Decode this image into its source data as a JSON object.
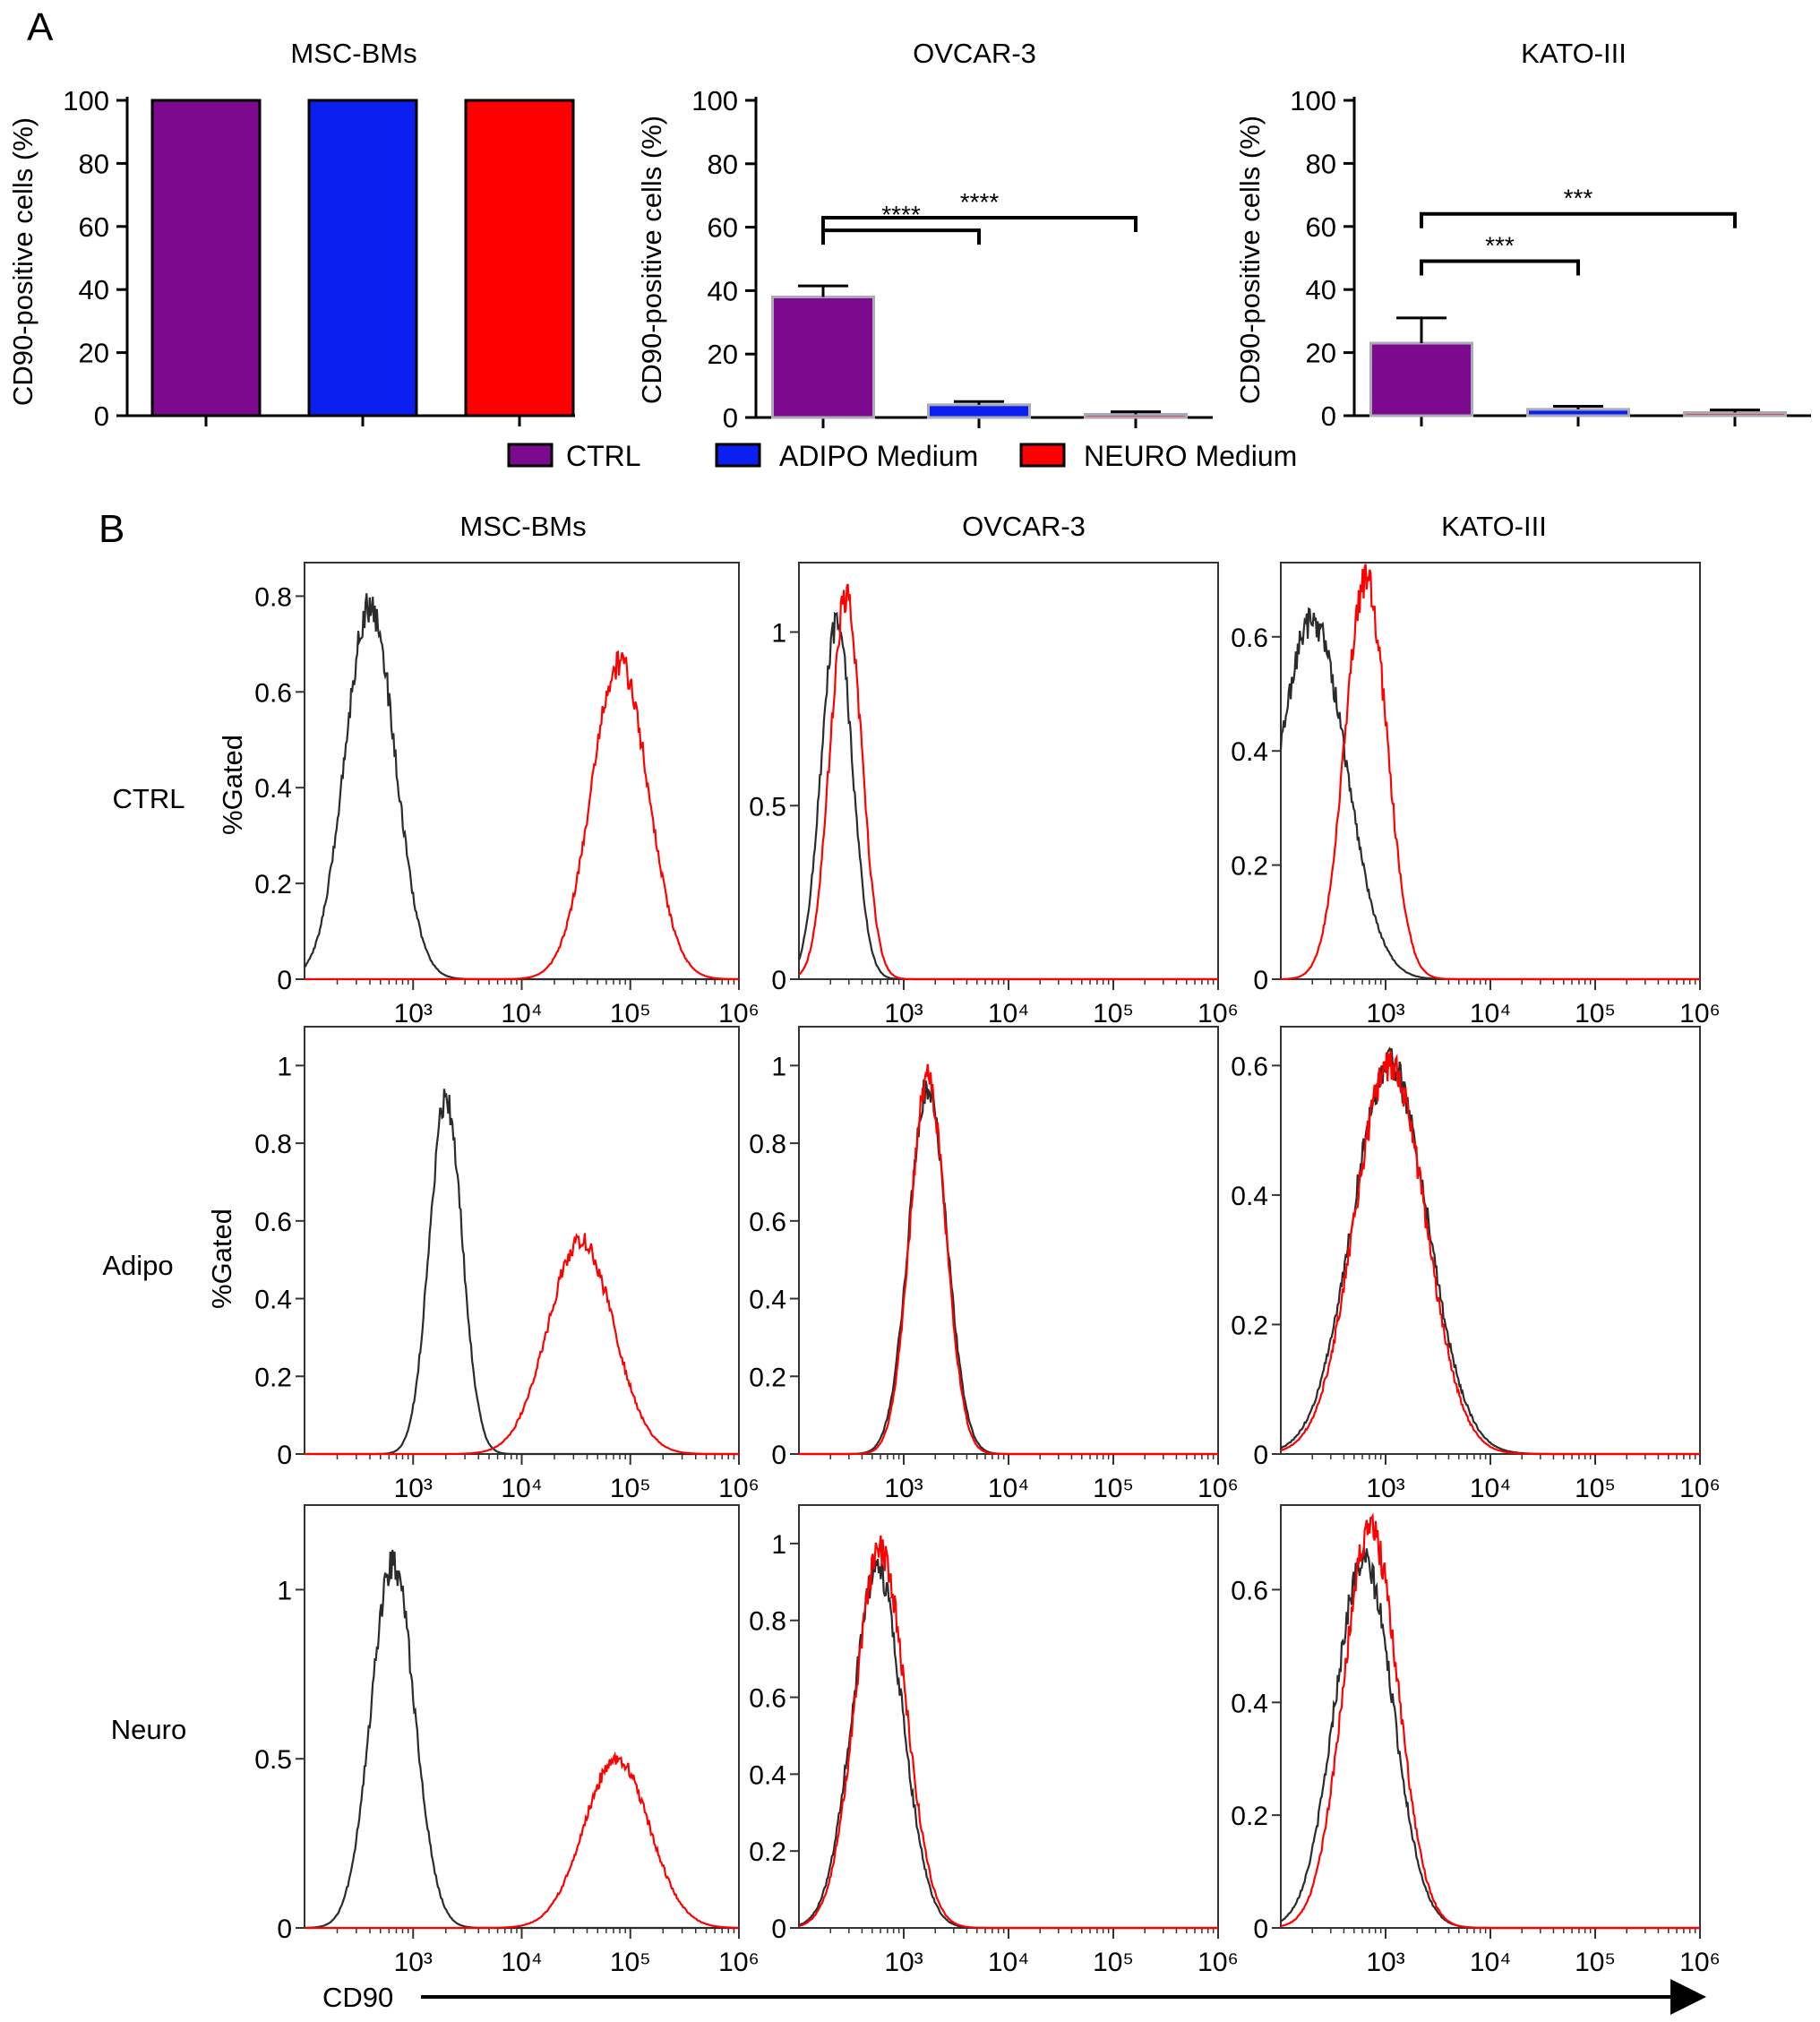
{
  "panels": {
    "a_letter": "A",
    "b_letter": "B"
  },
  "colors": {
    "ctrl": "#7B0A8E",
    "adipo": "#0A1EF0",
    "neuro": "#FF0000",
    "ctrl_histogram": "#2B2B2B",
    "treated_histogram": "#FF0000"
  },
  "legend": {
    "items": [
      {
        "label": "CTRL",
        "color": "#7B0A8E"
      },
      {
        "label": "ADIPO Medium",
        "color": "#0A1EF0"
      },
      {
        "label": "NEURO Medium",
        "color": "#FF0000"
      }
    ]
  },
  "panel_b": {
    "column_titles": [
      "MSC-BMs",
      "OVCAR-3",
      "KATO-III"
    ],
    "row_labels": [
      "CTRL",
      "Adipo",
      "Neuro"
    ],
    "y_axis_label": "%Gated",
    "x_axis_label": "CD90"
  },
  "chart_data": [
    {
      "type": "bar",
      "title": "MSC-BMs",
      "ylabel": "CD90-positive cells (%)",
      "xlabel": "",
      "ylim": [
        0,
        100
      ],
      "yticks": [
        0,
        20,
        40,
        60,
        80,
        100
      ],
      "categories": [
        "CTRL",
        "ADIPO Medium",
        "NEURO Medium"
      ],
      "values": [
        100,
        100,
        100
      ],
      "errors": [
        0,
        0,
        0
      ],
      "significance": []
    },
    {
      "type": "bar",
      "title": "OVCAR-3",
      "ylabel": "CD90-positive cells (%)",
      "xlabel": "",
      "ylim": [
        0,
        100
      ],
      "yticks": [
        0,
        20,
        40,
        60,
        80,
        100
      ],
      "categories": [
        "CTRL",
        "ADIPO Medium",
        "NEURO Medium"
      ],
      "values": [
        38,
        4,
        1
      ],
      "errors": [
        3.5,
        1,
        0.8
      ],
      "significance": [
        {
          "from": 0,
          "to": 1,
          "level": 59,
          "label": "****"
        },
        {
          "from": 0,
          "to": 2,
          "level": 63,
          "label": "****"
        }
      ]
    },
    {
      "type": "bar",
      "title": "KATO-III",
      "ylabel": "CD90-positive cells (%)",
      "xlabel": "",
      "ylim": [
        0,
        100
      ],
      "yticks": [
        0,
        20,
        40,
        60,
        80,
        100
      ],
      "categories": [
        "CTRL",
        "ADIPO Medium",
        "NEURO Medium"
      ],
      "values": [
        23,
        2,
        1
      ],
      "errors": [
        8,
        1,
        0.8
      ],
      "significance": [
        {
          "from": 0,
          "to": 1,
          "level": 49,
          "label": "***"
        },
        {
          "from": 0,
          "to": 2,
          "level": 64,
          "label": "***"
        }
      ]
    },
    {
      "type": "line",
      "title": "MSC-BMs",
      "row": "CTRL",
      "ylabel": "%Gated",
      "xlabel": "",
      "x_scale": "log",
      "xlim": [
        100,
        1000000
      ],
      "xticks": [
        1000,
        10000,
        100000,
        1000000
      ],
      "xtick_labels": [
        "10³",
        "10⁴",
        "10⁵",
        "10⁶"
      ],
      "ylim": [
        0,
        0.87
      ],
      "yticks": [
        0,
        0.2,
        0.4,
        0.6,
        0.8
      ],
      "ytick_labels": [
        "0",
        "0.2",
        "0.4",
        "0.6",
        "0.8"
      ],
      "series": [
        {
          "color": "#2B2B2B",
          "peak_x": 400,
          "peak_y": 0.78,
          "spread": 0.23
        },
        {
          "color": "#FF0000",
          "peak_x": 80000,
          "peak_y": 0.66,
          "spread": 0.26
        }
      ]
    },
    {
      "type": "line",
      "title": "OVCAR-3",
      "row": "CTRL",
      "ylabel": "",
      "xlabel": "",
      "x_scale": "log",
      "xlim": [
        100,
        1000000
      ],
      "xticks": [
        1000,
        10000,
        100000,
        1000000
      ],
      "xtick_labels": [
        "10³",
        "10⁴",
        "10⁵",
        "10⁶"
      ],
      "ylim": [
        0,
        1.2
      ],
      "yticks": [
        0,
        0.5,
        1
      ],
      "ytick_labels": [
        "0",
        "0.5",
        "1"
      ],
      "series": [
        {
          "color": "#2B2B2B",
          "peak_x": 230,
          "peak_y": 1.02,
          "spread": 0.15
        },
        {
          "color": "#FF0000",
          "peak_x": 280,
          "peak_y": 1.1,
          "spread": 0.15
        }
      ]
    },
    {
      "type": "line",
      "title": "KATO-III",
      "row": "CTRL",
      "ylabel": "",
      "xlabel": "",
      "x_scale": "log",
      "xlim": [
        100,
        1000000
      ],
      "xticks": [
        1000,
        10000,
        100000,
        1000000
      ],
      "xtick_labels": [
        "10³",
        "10⁴",
        "10⁵",
        "10⁶"
      ],
      "ylim": [
        0,
        0.73
      ],
      "yticks": [
        0,
        0.2,
        0.4,
        0.6
      ],
      "ytick_labels": [
        "0",
        "0.2",
        "0.4",
        "0.6"
      ],
      "series": [
        {
          "color": "#2B2B2B",
          "peak_x": 200,
          "peak_y": 0.63,
          "spread": 0.32
        },
        {
          "color": "#FF0000",
          "peak_x": 650,
          "peak_y": 0.7,
          "spread": 0.2
        }
      ]
    },
    {
      "type": "line",
      "title": "MSC-BMs",
      "row": "Adipo",
      "ylabel": "%Gated",
      "xlabel": "",
      "x_scale": "log",
      "xlim": [
        100,
        1000000
      ],
      "xticks": [
        1000,
        10000,
        100000,
        1000000
      ],
      "xtick_labels": [
        "10³",
        "10⁴",
        "10⁵",
        "10⁶"
      ],
      "ylim": [
        0,
        1.1
      ],
      "yticks": [
        0,
        0.2,
        0.4,
        0.6,
        0.8,
        1
      ],
      "ytick_labels": [
        "0",
        "0.2",
        "0.4",
        "0.6",
        "0.8",
        "1"
      ],
      "series": [
        {
          "color": "#2B2B2B",
          "peak_x": 2000,
          "peak_y": 0.92,
          "spread": 0.15
        },
        {
          "color": "#FF0000",
          "peak_x": 35000,
          "peak_y": 0.55,
          "spread": 0.3
        }
      ]
    },
    {
      "type": "line",
      "title": "OVCAR-3",
      "row": "Adipo",
      "ylabel": "",
      "xlabel": "",
      "x_scale": "log",
      "xlim": [
        100,
        1000000
      ],
      "xticks": [
        1000,
        10000,
        100000,
        1000000
      ],
      "xtick_labels": [
        "10³",
        "10⁴",
        "10⁵",
        "10⁶"
      ],
      "ylim": [
        0,
        1.1
      ],
      "yticks": [
        0,
        0.2,
        0.4,
        0.6,
        0.8,
        1
      ],
      "ytick_labels": [
        "0",
        "0.2",
        "0.4",
        "0.6",
        "0.8",
        "1"
      ],
      "series": [
        {
          "color": "#2B2B2B",
          "peak_x": 1700,
          "peak_y": 0.95,
          "spread": 0.18
        },
        {
          "color": "#FF0000",
          "peak_x": 1700,
          "peak_y": 0.97,
          "spread": 0.17
        }
      ]
    },
    {
      "type": "line",
      "title": "KATO-III",
      "row": "Adipo",
      "ylabel": "",
      "xlabel": "",
      "x_scale": "log",
      "xlim": [
        100,
        1000000
      ],
      "xticks": [
        1000,
        10000,
        100000,
        1000000
      ],
      "xtick_labels": [
        "10³",
        "10⁴",
        "10⁵",
        "10⁶"
      ],
      "ylim": [
        0,
        0.66
      ],
      "yticks": [
        0,
        0.2,
        0.4,
        0.6
      ],
      "ytick_labels": [
        "0",
        "0.2",
        "0.4",
        "0.6"
      ],
      "series": [
        {
          "color": "#2B2B2B",
          "peak_x": 1100,
          "peak_y": 0.6,
          "spread": 0.36
        },
        {
          "color": "#FF0000",
          "peak_x": 1100,
          "peak_y": 0.6,
          "spread": 0.34
        }
      ]
    },
    {
      "type": "line",
      "title": "MSC-BMs",
      "row": "Neuro",
      "ylabel": "",
      "xlabel": "",
      "x_scale": "log",
      "xlim": [
        100,
        1000000
      ],
      "xticks": [
        1000,
        10000,
        100000,
        1000000
      ],
      "xtick_labels": [
        "10³",
        "10⁴",
        "10⁵",
        "10⁶"
      ],
      "ylim": [
        0,
        1.25
      ],
      "yticks": [
        0,
        0.5,
        1
      ],
      "ytick_labels": [
        "0",
        "0.5",
        "1"
      ],
      "series": [
        {
          "color": "#2B2B2B",
          "peak_x": 650,
          "peak_y": 1.08,
          "spread": 0.2
        },
        {
          "color": "#FF0000",
          "peak_x": 75000,
          "peak_y": 0.5,
          "spread": 0.3
        }
      ]
    },
    {
      "type": "line",
      "title": "OVCAR-3",
      "row": "Neuro",
      "ylabel": "",
      "xlabel": "",
      "x_scale": "log",
      "xlim": [
        100,
        1000000
      ],
      "xticks": [
        1000,
        10000,
        100000,
        1000000
      ],
      "xtick_labels": [
        "10³",
        "10⁴",
        "10⁵",
        "10⁶"
      ],
      "ylim": [
        0,
        1.1
      ],
      "yticks": [
        0,
        0.2,
        0.4,
        0.6,
        0.8,
        1
      ],
      "ytick_labels": [
        "0",
        "0.2",
        "0.4",
        "0.6",
        "0.8",
        "1"
      ],
      "series": [
        {
          "color": "#2B2B2B",
          "peak_x": 560,
          "peak_y": 0.93,
          "spread": 0.24
        },
        {
          "color": "#FF0000",
          "peak_x": 600,
          "peak_y": 0.98,
          "spread": 0.24
        }
      ]
    },
    {
      "type": "line",
      "title": "KATO-III",
      "row": "Neuro",
      "ylabel": "",
      "xlabel": "",
      "x_scale": "log",
      "xlim": [
        100,
        1000000
      ],
      "xticks": [
        1000,
        10000,
        100000,
        1000000
      ],
      "xtick_labels": [
        "10³",
        "10⁴",
        "10⁵",
        "10⁶"
      ],
      "ylim": [
        0,
        0.75
      ],
      "yticks": [
        0,
        0.2,
        0.4,
        0.6
      ],
      "ytick_labels": [
        "0",
        "0.2",
        "0.4",
        "0.6"
      ],
      "series": [
        {
          "color": "#2B2B2B",
          "peak_x": 620,
          "peak_y": 0.65,
          "spread": 0.28
        },
        {
          "color": "#FF0000",
          "peak_x": 720,
          "peak_y": 0.71,
          "spread": 0.26
        }
      ]
    }
  ]
}
